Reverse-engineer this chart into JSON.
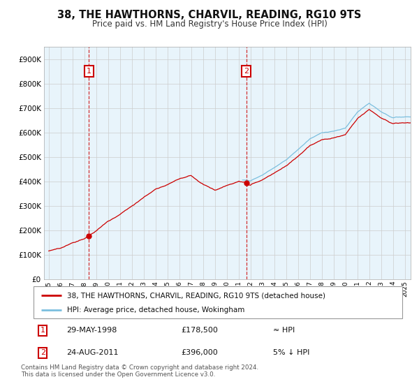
{
  "title": "38, THE HAWTHORNS, CHARVIL, READING, RG10 9TS",
  "subtitle": "Price paid vs. HM Land Registry's House Price Index (HPI)",
  "legend_label1": "38, THE HAWTHORNS, CHARVIL, READING, RG10 9TS (detached house)",
  "legend_label2": "HPI: Average price, detached house, Wokingham",
  "sale1_date": "29-MAY-1998",
  "sale1_price": "£178,500",
  "sale1_hpi": "≈ HPI",
  "sale2_date": "24-AUG-2011",
  "sale2_price": "£396,000",
  "sale2_hpi": "5% ↓ HPI",
  "footer": "Contains HM Land Registry data © Crown copyright and database right 2024.\nThis data is licensed under the Open Government Licence v3.0.",
  "ylim": [
    0,
    950000
  ],
  "yticks": [
    0,
    100000,
    200000,
    300000,
    400000,
    500000,
    600000,
    700000,
    800000,
    900000
  ],
  "sale1_year": 1998.38,
  "sale1_value": 178500,
  "sale2_year": 2011.65,
  "sale2_value": 396000,
  "hpi_color": "#7bbfdf",
  "price_color": "#cc0000",
  "background_color": "#ffffff",
  "chart_bg_color": "#e8f4fb",
  "grid_color": "#cccccc"
}
